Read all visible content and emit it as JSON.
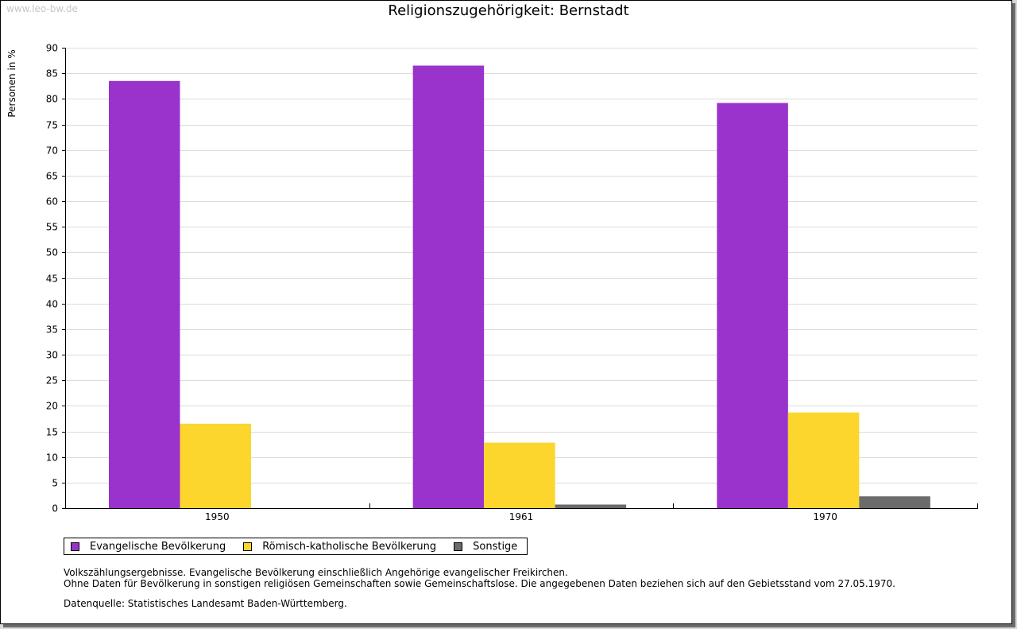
{
  "watermark": "www.leo-bw.de",
  "notes": [
    "Volkszählungsergebnisse. Evangelische Bevölkerung einschließlich Angehörige evangelischer Freikirchen.",
    "Ohne Daten für Bevölkerung in sonstigen religiösen Gemeinschaften sowie Gemeinschaftslose. Die angegebenen Daten beziehen sich auf den Gebietsstand vom 27.05.1970."
  ],
  "source": "Datenquelle: Statistisches Landesamt Baden-Württemberg.",
  "chart_data": {
    "type": "bar",
    "title": "Religionszugehörigkeit: Bernstadt",
    "xlabel": "",
    "ylabel": "Personen in %",
    "categories": [
      "1950",
      "1961",
      "1970"
    ],
    "ylim": [
      0,
      90
    ],
    "yticks": [
      0,
      5,
      10,
      15,
      20,
      25,
      30,
      35,
      40,
      45,
      50,
      55,
      60,
      65,
      70,
      75,
      80,
      85,
      90
    ],
    "grid": true,
    "legend_position": "bottom-left",
    "series": [
      {
        "name": "Evangelische Bevölkerung",
        "color": "#9933cc",
        "values": [
          83.5,
          86.5,
          79.2
        ]
      },
      {
        "name": "Römisch-katholische Bevölkerung",
        "color": "#fcd62c",
        "values": [
          16.5,
          12.8,
          18.7
        ]
      },
      {
        "name": "Sonstige",
        "color": "#6b6b6b",
        "values": [
          null,
          0.7,
          2.3
        ]
      }
    ]
  }
}
